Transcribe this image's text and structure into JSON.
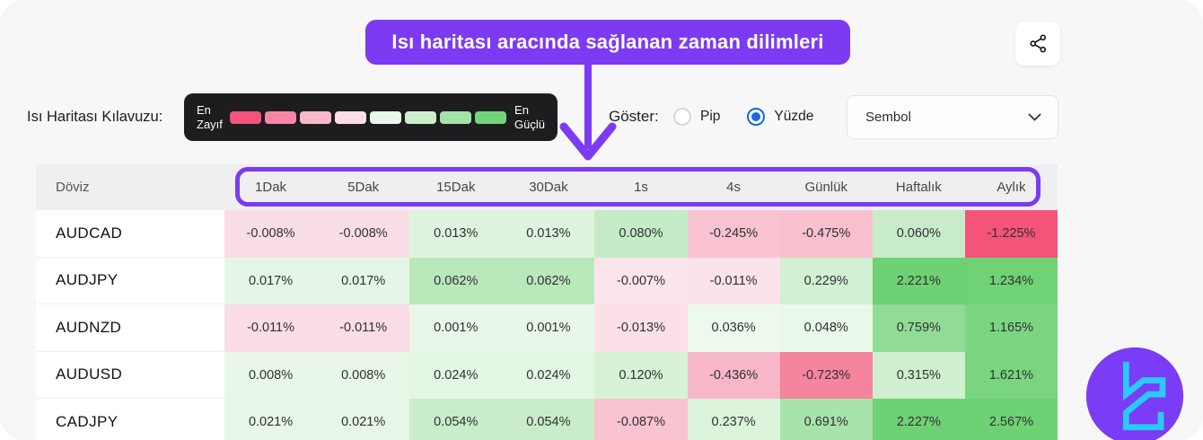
{
  "callout": {
    "text": "Isı haritası aracında sağlanan zaman dilimleri"
  },
  "colors": {
    "accent_purple": "#7c3bf2",
    "radio_selected_blue": "#1668e3",
    "legend_box_bg": "#1d1d1f",
    "strongest_negative": "#f4547a",
    "strongest_positive": "#6ed275"
  },
  "share_button": {
    "icon": "share-icon"
  },
  "legend": {
    "label": "Isı Haritası Kılavuzu:",
    "weak_top": "En",
    "weak_bottom": "Zayıf",
    "strong_top": "En",
    "strong_bottom": "Güçlü",
    "swatches": [
      "#f4537a",
      "#f687a5",
      "#f9b9cb",
      "#fbdde6",
      "#eaf8ea",
      "#cceecd",
      "#a5e2a8",
      "#74d47b"
    ]
  },
  "show_control": {
    "label": "Göster:",
    "radio_color": "#1668e3",
    "options": [
      {
        "label": "Pip",
        "selected": false
      },
      {
        "label": "Yüzde",
        "selected": true
      }
    ]
  },
  "symbol_dropdown": {
    "value": "Sembol",
    "chevron": "chevron-down-icon"
  },
  "table": {
    "currency_header": "Döviz",
    "timeframe_headers": [
      "1Dak",
      "5Dak",
      "15Dak",
      "30Dak",
      "1s",
      "4s",
      "Günlük",
      "Haftalık",
      "Aylık"
    ],
    "rows": [
      {
        "pair": "AUDCAD",
        "cells": [
          {
            "value": "-0.008%",
            "bg": "#fadee7"
          },
          {
            "value": "-0.008%",
            "bg": "#fadee7"
          },
          {
            "value": "0.013%",
            "bg": "#dff4df"
          },
          {
            "value": "0.013%",
            "bg": "#dff4df"
          },
          {
            "value": "0.080%",
            "bg": "#c5ecc7"
          },
          {
            "value": "-0.245%",
            "bg": "#f9c3d2"
          },
          {
            "value": "-0.475%",
            "bg": "#f9c0cf"
          },
          {
            "value": "0.060%",
            "bg": "#c8ecc9"
          },
          {
            "value": "-1.225%",
            "bg": "#f4547a"
          }
        ]
      },
      {
        "pair": "AUDJPY",
        "cells": [
          {
            "value": "0.017%",
            "bg": "#e5f6e6"
          },
          {
            "value": "0.017%",
            "bg": "#e5f6e6"
          },
          {
            "value": "0.062%",
            "bg": "#b9e8bb"
          },
          {
            "value": "0.062%",
            "bg": "#b9e8bb"
          },
          {
            "value": "-0.007%",
            "bg": "#fbe5eb"
          },
          {
            "value": "-0.011%",
            "bg": "#fbe3e9"
          },
          {
            "value": "0.229%",
            "bg": "#d2f0d3"
          },
          {
            "value": "2.221%",
            "bg": "#6ed275"
          },
          {
            "value": "1.234%",
            "bg": "#70d276"
          }
        ]
      },
      {
        "pair": "AUDNZD",
        "cells": [
          {
            "value": "-0.011%",
            "bg": "#fadde6"
          },
          {
            "value": "-0.011%",
            "bg": "#fadde6"
          },
          {
            "value": "0.001%",
            "bg": "#e9f7e9"
          },
          {
            "value": "0.001%",
            "bg": "#e9f7e9"
          },
          {
            "value": "-0.013%",
            "bg": "#fbe0e8"
          },
          {
            "value": "0.036%",
            "bg": "#edf9ed"
          },
          {
            "value": "0.048%",
            "bg": "#eaf8ea"
          },
          {
            "value": "0.759%",
            "bg": "#90dc95"
          },
          {
            "value": "1.165%",
            "bg": "#7bd681"
          }
        ]
      },
      {
        "pair": "AUDUSD",
        "cells": [
          {
            "value": "0.008%",
            "bg": "#e8f7e8"
          },
          {
            "value": "0.008%",
            "bg": "#e8f7e8"
          },
          {
            "value": "0.024%",
            "bg": "#e4f6e4"
          },
          {
            "value": "0.024%",
            "bg": "#e4f6e4"
          },
          {
            "value": "0.120%",
            "bg": "#d7f2d7"
          },
          {
            "value": "-0.436%",
            "bg": "#f8b7c9"
          },
          {
            "value": "-0.723%",
            "bg": "#f5849f"
          },
          {
            "value": "0.315%",
            "bg": "#cfefcf"
          },
          {
            "value": "1.621%",
            "bg": "#79d57f"
          }
        ]
      },
      {
        "pair": "CADJPY",
        "cells": [
          {
            "value": "0.021%",
            "bg": "#e7f6e7"
          },
          {
            "value": "0.021%",
            "bg": "#e7f6e7"
          },
          {
            "value": "0.054%",
            "bg": "#c9edc9"
          },
          {
            "value": "0.054%",
            "bg": "#c9edc9"
          },
          {
            "value": "-0.087%",
            "bg": "#f9c3d1"
          },
          {
            "value": "0.237%",
            "bg": "#dcf3dc"
          },
          {
            "value": "0.691%",
            "bg": "#a8e3ab"
          },
          {
            "value": "2.227%",
            "bg": "#6ed275"
          },
          {
            "value": "2.567%",
            "bg": "#6ed275"
          }
        ]
      }
    ]
  }
}
